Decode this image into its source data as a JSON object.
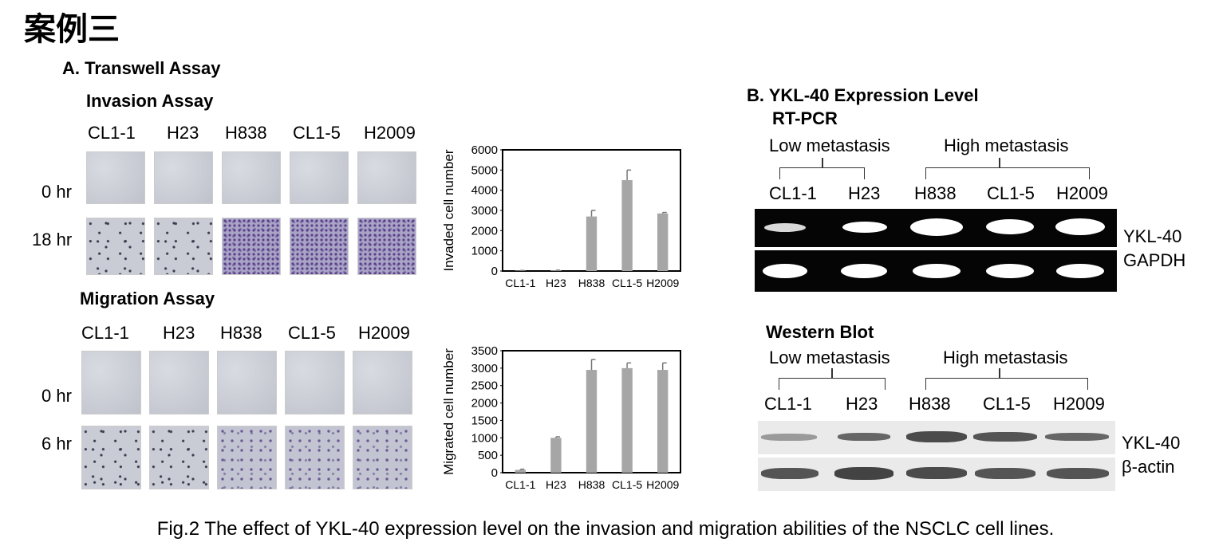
{
  "heading": "案例三",
  "panelA": {
    "title": "A. Transwell Assay",
    "invasion": {
      "title": "Invasion Assay",
      "cell_lines": [
        "CL1-1",
        "H23",
        "H838",
        "CL1-5",
        "H2009"
      ],
      "rows": [
        "0 hr",
        "18 hr"
      ]
    },
    "migration": {
      "title": "Migration Assay",
      "cell_lines": [
        "CL1-1",
        "H23",
        "H838",
        "CL1-5",
        "H2009"
      ],
      "rows": [
        "0 hr",
        "6 hr"
      ]
    }
  },
  "chart_data": [
    {
      "type": "bar",
      "title": "",
      "ylabel": "Invaded cell number",
      "xlabel": "",
      "categories": [
        "CL1-1",
        "H23",
        "H838",
        "CL1-5",
        "H2009"
      ],
      "values": [
        20,
        30,
        2700,
        4500,
        2850
      ],
      "errors": [
        10,
        10,
        300,
        500,
        50
      ],
      "ylim": [
        0,
        6000
      ],
      "yticks": [
        0,
        1000,
        2000,
        3000,
        4000,
        5000,
        6000
      ],
      "grid": false
    },
    {
      "type": "bar",
      "title": "",
      "ylabel": "Migrated cell number",
      "xlabel": "",
      "categories": [
        "CL1-1",
        "H23",
        "H838",
        "CL1-5",
        "H2009"
      ],
      "values": [
        80,
        1000,
        2950,
        3000,
        2950
      ],
      "errors": [
        20,
        30,
        300,
        150,
        200
      ],
      "ylim": [
        0,
        3500
      ],
      "yticks": [
        0,
        500,
        1000,
        1500,
        2000,
        2500,
        3000,
        3500
      ],
      "grid": false
    }
  ],
  "panelB": {
    "title": "B. YKL-40 Expression Level",
    "rtpcr": {
      "title": "RT-PCR",
      "low": "Low metastasis",
      "high": "High metastasis",
      "lanes": [
        "CL1-1",
        "H23",
        "H838",
        "CL1-5",
        "H2009"
      ],
      "bands": [
        "YKL-40",
        "GAPDH"
      ]
    },
    "western": {
      "title": "Western Blot",
      "low": "Low metastasis",
      "high": "High metastasis",
      "lanes": [
        "CL1-1",
        "H23",
        "H838",
        "CL1-5",
        "H2009"
      ],
      "bands": [
        "YKL-40",
        "β-actin"
      ]
    }
  },
  "caption": "Fig.2 The effect of YKL-40 expression level on the invasion and migration abilities of the NSCLC cell lines."
}
